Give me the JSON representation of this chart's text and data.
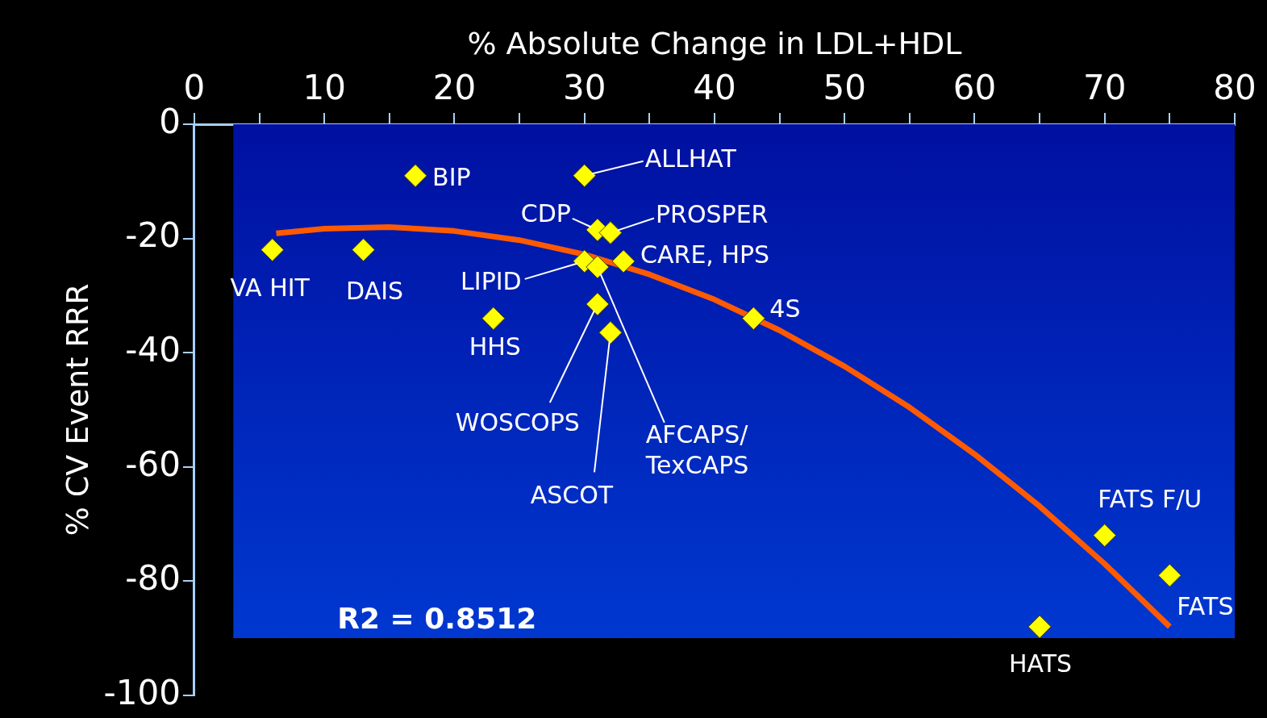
{
  "chart_data": {
    "type": "scatter",
    "xlabel": "% Absolute Change in LDL+HDL",
    "ylabel": "% CV Event RRR",
    "xlim": [
      0,
      80
    ],
    "ylim": [
      -100,
      0
    ],
    "xticks": [
      0,
      {
        "value": 5,
        "label": null
      },
      10,
      {
        "value": 15,
        "label": null
      },
      20,
      {
        "value": 25,
        "label": null
      },
      30,
      {
        "value": 35,
        "label": null
      },
      40,
      {
        "value": 45,
        "label": null
      },
      50,
      {
        "value": 55,
        "label": null
      },
      60,
      {
        "value": 65,
        "label": null
      },
      70,
      {
        "value": 75,
        "label": null
      },
      80
    ],
    "yticks": [
      -100,
      -80,
      -60,
      -40,
      -20,
      0
    ],
    "grid": false,
    "legend": false,
    "marker": "diamond",
    "series": [
      {
        "color": "#ffff00",
        "x": [
          6,
          13,
          17,
          23,
          30,
          31,
          32,
          30,
          31,
          33,
          31,
          32,
          43,
          70,
          75,
          65
        ],
        "values": [
          -22,
          -22,
          -9,
          -34,
          -9,
          -18.5,
          -19,
          -24,
          -25,
          -24,
          -31.5,
          -36.5,
          -34,
          -72,
          -79,
          -88
        ]
      },
      {
        "type": "line",
        "marker": "none",
        "color": "#ff5a00",
        "x": [
          6.3,
          10,
          15,
          20,
          25,
          30,
          35,
          40,
          45,
          50,
          55,
          60,
          65,
          70,
          75
        ],
        "values": [
          -19.1,
          -18.3,
          -18,
          -18.7,
          -20.3,
          -22.8,
          -26.3,
          -30.7,
          -36.1,
          -42.4,
          -49.6,
          -57.8,
          -66.9,
          -77,
          -88
        ]
      }
    ],
    "annotations": [
      {
        "text": "VA HIT",
        "x": 6,
        "y": -22
      },
      {
        "text": "DAIS",
        "x": 13,
        "y": -22
      },
      {
        "text": "BIP",
        "x": 17,
        "y": -9
      },
      {
        "text": "HHS",
        "x": 23,
        "y": -34
      },
      {
        "text": "ALLHAT",
        "x": 30,
        "y": -9
      },
      {
        "text": "CDP",
        "x": 31,
        "y": -18.5
      },
      {
        "text": "PROSPER",
        "x": 32,
        "y": -19
      },
      {
        "text": "LIPID",
        "x": 30,
        "y": -24
      },
      {
        "text": "AFCAPS/\nTexCAPS",
        "x": 31,
        "y": -25
      },
      {
        "text": "CARE, HPS",
        "x": 33,
        "y": -24
      },
      {
        "text": "WOSCOPS",
        "x": 31,
        "y": -31.5
      },
      {
        "text": "ASCOT",
        "x": 32,
        "y": -36.5
      },
      {
        "text": "4S",
        "x": 43,
        "y": -34
      },
      {
        "text": "FATS F/U",
        "x": 70,
        "y": -72
      },
      {
        "text": "FATS",
        "x": 75,
        "y": -79
      },
      {
        "text": "HATS",
        "x": 65,
        "y": -88
      },
      "R2 = 0.8512"
    ]
  }
}
